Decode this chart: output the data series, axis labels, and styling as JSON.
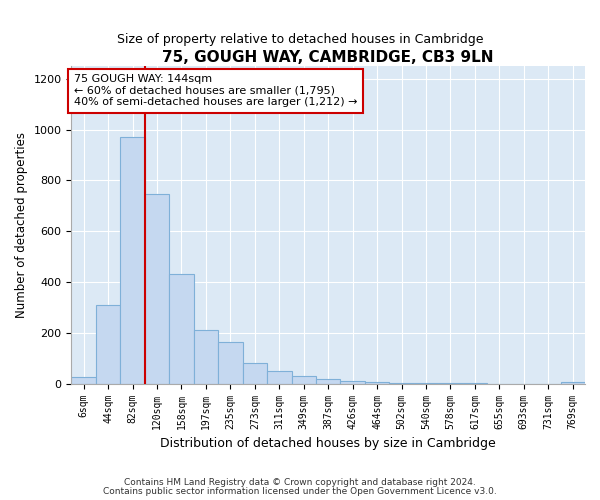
{
  "title": "75, GOUGH WAY, CAMBRIDGE, CB3 9LN",
  "subtitle": "Size of property relative to detached houses in Cambridge",
  "xlabel": "Distribution of detached houses by size in Cambridge",
  "ylabel": "Number of detached properties",
  "bar_labels": [
    "6sqm",
    "44sqm",
    "82sqm",
    "120sqm",
    "158sqm",
    "197sqm",
    "235sqm",
    "273sqm",
    "311sqm",
    "349sqm",
    "387sqm",
    "426sqm",
    "464sqm",
    "502sqm",
    "540sqm",
    "578sqm",
    "617sqm",
    "655sqm",
    "693sqm",
    "731sqm",
    "769sqm"
  ],
  "bar_values": [
    25,
    310,
    970,
    745,
    430,
    210,
    165,
    80,
    50,
    30,
    20,
    10,
    5,
    3,
    2,
    1,
    1,
    0,
    0,
    0,
    5
  ],
  "bar_color": "#c5d8f0",
  "bar_edge_color": "#7fb0d8",
  "vline_x": 2.5,
  "vline_color": "#cc0000",
  "annotation_text": "75 GOUGH WAY: 144sqm\n← 60% of detached houses are smaller (1,795)\n40% of semi-detached houses are larger (1,212) →",
  "box_color": "#cc0000",
  "ylim": [
    0,
    1250
  ],
  "yticks": [
    0,
    200,
    400,
    600,
    800,
    1000,
    1200
  ],
  "bg_color": "#dce9f5",
  "footer1": "Contains HM Land Registry data © Crown copyright and database right 2024.",
  "footer2": "Contains public sector information licensed under the Open Government Licence v3.0."
}
